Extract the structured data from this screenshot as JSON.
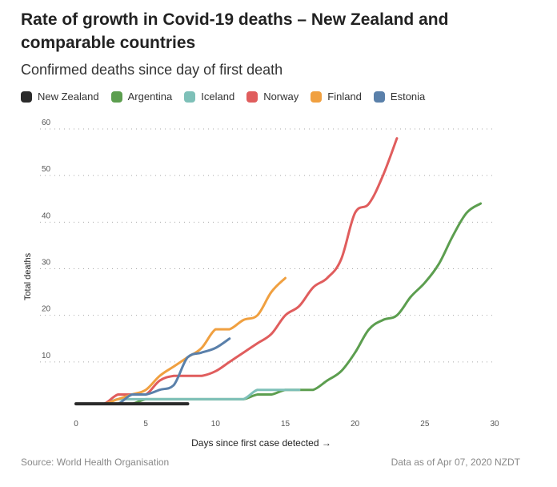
{
  "title": "Rate of growth in Covid-19 deaths – New Zealand and comparable countries",
  "subtitle": "Confirmed deaths since day of first death",
  "source": "Source: World Health Organisation",
  "data_as_of": "Data as of Apr 07, 2020 NZDT",
  "chart_data": {
    "type": "line",
    "xlabel": "Days since first case detected →",
    "ylabel": "Total deaths",
    "xlim": [
      0,
      30
    ],
    "ylim": [
      0,
      60
    ],
    "xticks": [
      0,
      5,
      10,
      15,
      20,
      25,
      30
    ],
    "yticks": [
      10,
      20,
      30,
      40,
      50,
      60
    ],
    "grid": "horizontal dotted",
    "legend": "top-left",
    "series": [
      {
        "name": "New Zealand",
        "color": "#2b2b2b",
        "x": [
          0,
          8
        ],
        "y": [
          1,
          1
        ]
      },
      {
        "name": "Argentina",
        "color": "#5c9e4f",
        "x": [
          0,
          1,
          2,
          3,
          4,
          5,
          6,
          7,
          8,
          9,
          10,
          11,
          12,
          13,
          14,
          15,
          16,
          17,
          18,
          19,
          20,
          21,
          22,
          23,
          24,
          25,
          26,
          27,
          28,
          29
        ],
        "y": [
          1,
          1,
          1,
          1,
          1,
          2,
          2,
          2,
          2,
          2,
          2,
          2,
          2,
          3,
          3,
          4,
          4,
          4,
          6,
          8,
          12,
          17,
          19,
          20,
          24,
          27,
          31,
          37,
          42,
          44
        ]
      },
      {
        "name": "Iceland",
        "color": "#7ec0b8",
        "x": [
          0,
          1,
          2,
          3,
          4,
          5,
          6,
          7,
          8,
          9,
          10,
          11,
          12,
          13,
          14,
          15,
          16
        ],
        "y": [
          1,
          1,
          1,
          2,
          2,
          2,
          2,
          2,
          2,
          2,
          2,
          2,
          2,
          4,
          4,
          4,
          4
        ]
      },
      {
        "name": "Norway",
        "color": "#e05d5d",
        "x": [
          0,
          1,
          2,
          3,
          4,
          5,
          6,
          7,
          8,
          9,
          10,
          11,
          12,
          13,
          14,
          15,
          16,
          17,
          18,
          19,
          20,
          21,
          22,
          23
        ],
        "y": [
          1,
          1,
          1,
          3,
          3,
          3,
          6,
          7,
          7,
          7,
          8,
          10,
          12,
          14,
          16,
          20,
          22,
          26,
          28,
          32,
          42,
          44,
          50,
          58
        ]
      },
      {
        "name": "Finland",
        "color": "#f0a040",
        "x": [
          0,
          1,
          2,
          3,
          4,
          5,
          6,
          7,
          8,
          9,
          10,
          11,
          12,
          13,
          14,
          15
        ],
        "y": [
          1,
          1,
          1,
          2,
          3,
          4,
          7,
          9,
          11,
          13,
          17,
          17,
          19,
          20,
          25,
          28
        ]
      },
      {
        "name": "Estonia",
        "color": "#5a80aa",
        "x": [
          0,
          1,
          2,
          3,
          4,
          5,
          6,
          7,
          8,
          9,
          10,
          11
        ],
        "y": [
          1,
          1,
          1,
          1,
          3,
          3,
          4,
          5,
          11,
          12,
          13,
          15
        ]
      }
    ]
  }
}
